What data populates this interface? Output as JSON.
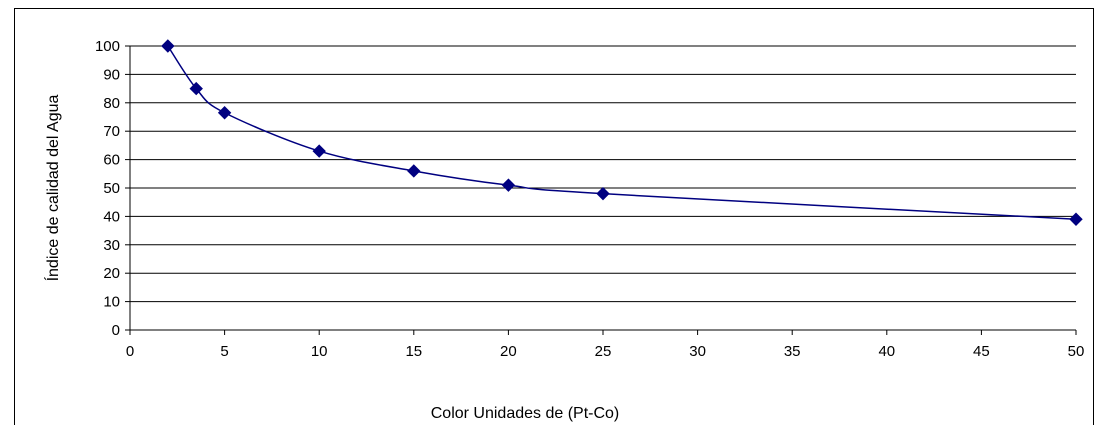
{
  "chart_data": {
    "type": "line",
    "title": "",
    "xlabel": "Color Unidades de (Pt-Co)",
    "ylabel": "Índice de calidad del Agua",
    "x_categories": [
      "0",
      "5",
      "10",
      "15",
      "20",
      "25",
      "30",
      "35",
      "40",
      "45",
      "50"
    ],
    "y_ticks": [
      "0",
      "10",
      "20",
      "30",
      "40",
      "50",
      "60",
      "70",
      "80",
      "90",
      "100"
    ],
    "ylim": [
      0,
      100
    ],
    "grid": "horizontal",
    "legend": "none",
    "series": [
      {
        "color": "#000080",
        "marker": "diamond",
        "points": [
          {
            "x": 2,
            "y": 100
          },
          {
            "x": 3.5,
            "y": 85
          },
          {
            "x": 5,
            "y": 76.5
          },
          {
            "x": 10,
            "y": 63
          },
          {
            "x": 15,
            "y": 56
          },
          {
            "x": 20,
            "y": 51
          },
          {
            "x": 25,
            "y": 48
          },
          {
            "x": 50,
            "y": 39
          }
        ]
      }
    ]
  }
}
